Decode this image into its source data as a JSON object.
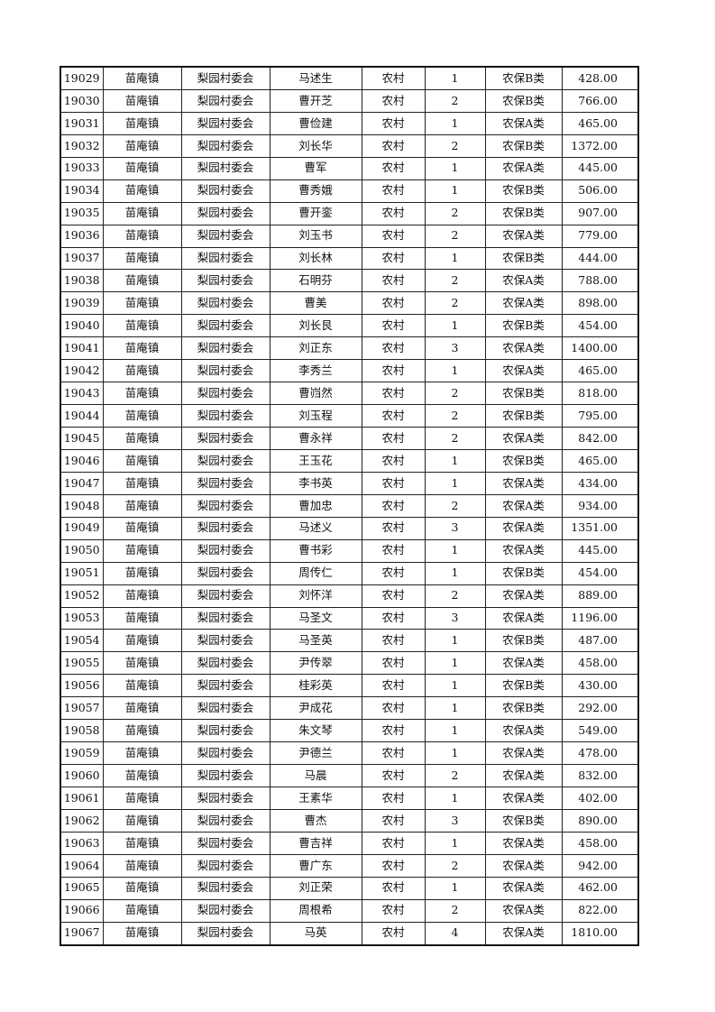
{
  "rows": [
    [
      "19029",
      "苗庵镇",
      "梨园村委会",
      "马述生",
      "农村",
      "1",
      "农保B类",
      "428.00"
    ],
    [
      "19030",
      "苗庵镇",
      "梨园村委会",
      "曹开芝",
      "农村",
      "2",
      "农保B类",
      "766.00"
    ],
    [
      "19031",
      "苗庵镇",
      "梨园村委会",
      "曹俭建",
      "农村",
      "1",
      "农保A类",
      "465.00"
    ],
    [
      "19032",
      "苗庵镇",
      "梨园村委会",
      "刘长华",
      "农村",
      "2",
      "农保B类",
      "1372.00"
    ],
    [
      "19033",
      "苗庵镇",
      "梨园村委会",
      "曹军",
      "农村",
      "1",
      "农保A类",
      "445.00"
    ],
    [
      "19034",
      "苗庵镇",
      "梨园村委会",
      "曹秀娥",
      "农村",
      "1",
      "农保B类",
      "506.00"
    ],
    [
      "19035",
      "苗庵镇",
      "梨园村委会",
      "曹开銮",
      "农村",
      "2",
      "农保B类",
      "907.00"
    ],
    [
      "19036",
      "苗庵镇",
      "梨园村委会",
      "刘玉书",
      "农村",
      "2",
      "农保A类",
      "779.00"
    ],
    [
      "19037",
      "苗庵镇",
      "梨园村委会",
      "刘长林",
      "农村",
      "1",
      "农保B类",
      "444.00"
    ],
    [
      "19038",
      "苗庵镇",
      "梨园村委会",
      "石明芬",
      "农村",
      "2",
      "农保A类",
      "788.00"
    ],
    [
      "19039",
      "苗庵镇",
      "梨园村委会",
      "曹美",
      "农村",
      "2",
      "农保A类",
      "898.00"
    ],
    [
      "19040",
      "苗庵镇",
      "梨园村委会",
      "刘长艮",
      "农村",
      "1",
      "农保B类",
      "454.00"
    ],
    [
      "19041",
      "苗庵镇",
      "梨园村委会",
      "刘正东",
      "农村",
      "3",
      "农保A类",
      "1400.00"
    ],
    [
      "19042",
      "苗庵镇",
      "梨园村委会",
      "李秀兰",
      "农村",
      "1",
      "农保A类",
      "465.00"
    ],
    [
      "19043",
      "苗庵镇",
      "梨园村委会",
      "曹岿然",
      "农村",
      "2",
      "农保B类",
      "818.00"
    ],
    [
      "19044",
      "苗庵镇",
      "梨园村委会",
      "刘玉程",
      "农村",
      "2",
      "农保B类",
      "795.00"
    ],
    [
      "19045",
      "苗庵镇",
      "梨园村委会",
      "曹永祥",
      "农村",
      "2",
      "农保A类",
      "842.00"
    ],
    [
      "19046",
      "苗庵镇",
      "梨园村委会",
      "王玉花",
      "农村",
      "1",
      "农保B类",
      "465.00"
    ],
    [
      "19047",
      "苗庵镇",
      "梨园村委会",
      "李书英",
      "农村",
      "1",
      "农保A类",
      "434.00"
    ],
    [
      "19048",
      "苗庵镇",
      "梨园村委会",
      "曹加忠",
      "农村",
      "2",
      "农保A类",
      "934.00"
    ],
    [
      "19049",
      "苗庵镇",
      "梨园村委会",
      "马述义",
      "农村",
      "3",
      "农保A类",
      "1351.00"
    ],
    [
      "19050",
      "苗庵镇",
      "梨园村委会",
      "曹书彩",
      "农村",
      "1",
      "农保A类",
      "445.00"
    ],
    [
      "19051",
      "苗庵镇",
      "梨园村委会",
      "周传仁",
      "农村",
      "1",
      "农保B类",
      "454.00"
    ],
    [
      "19052",
      "苗庵镇",
      "梨园村委会",
      "刘怀洋",
      "农村",
      "2",
      "农保A类",
      "889.00"
    ],
    [
      "19053",
      "苗庵镇",
      "梨园村委会",
      "马圣文",
      "农村",
      "3",
      "农保A类",
      "1196.00"
    ],
    [
      "19054",
      "苗庵镇",
      "梨园村委会",
      "马圣英",
      "农村",
      "1",
      "农保B类",
      "487.00"
    ],
    [
      "19055",
      "苗庵镇",
      "梨园村委会",
      "尹传翠",
      "农村",
      "1",
      "农保A类",
      "458.00"
    ],
    [
      "19056",
      "苗庵镇",
      "梨园村委会",
      "桂彩英",
      "农村",
      "1",
      "农保B类",
      "430.00"
    ],
    [
      "19057",
      "苗庵镇",
      "梨园村委会",
      "尹成花",
      "农村",
      "1",
      "农保B类",
      "292.00"
    ],
    [
      "19058",
      "苗庵镇",
      "梨园村委会",
      "朱文琴",
      "农村",
      "1",
      "农保A类",
      "549.00"
    ],
    [
      "19059",
      "苗庵镇",
      "梨园村委会",
      "尹德兰",
      "农村",
      "1",
      "农保A类",
      "478.00"
    ],
    [
      "19060",
      "苗庵镇",
      "梨园村委会",
      "马晨",
      "农村",
      "2",
      "农保A类",
      "832.00"
    ],
    [
      "19061",
      "苗庵镇",
      "梨园村委会",
      "王素华",
      "农村",
      "1",
      "农保A类",
      "402.00"
    ],
    [
      "19062",
      "苗庵镇",
      "梨园村委会",
      "曹杰",
      "农村",
      "3",
      "农保B类",
      "890.00"
    ],
    [
      "19063",
      "苗庵镇",
      "梨园村委会",
      "曹吉祥",
      "农村",
      "1",
      "农保A类",
      "458.00"
    ],
    [
      "19064",
      "苗庵镇",
      "梨园村委会",
      "曹广东",
      "农村",
      "2",
      "农保A类",
      "942.00"
    ],
    [
      "19065",
      "苗庵镇",
      "梨园村委会",
      "刘正荣",
      "农村",
      "1",
      "农保A类",
      "462.00"
    ],
    [
      "19066",
      "苗庵镇",
      "梨园村委会",
      "周根希",
      "农村",
      "2",
      "农保A类",
      "822.00"
    ],
    [
      "19067",
      "苗庵镇",
      "梨园村委会",
      "马英",
      "农村",
      "4",
      "农保A类",
      "1810.00"
    ]
  ]
}
